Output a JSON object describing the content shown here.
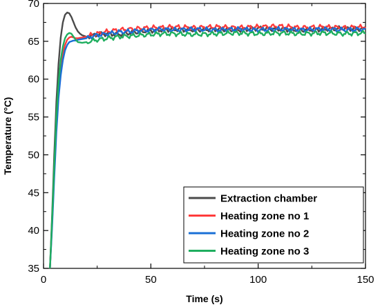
{
  "chart_data": {
    "type": "line",
    "title": "",
    "xlabel": "Time (s)",
    "ylabel": "Temperature (°C)",
    "xlim": [
      0,
      150
    ],
    "ylim": [
      35,
      70
    ],
    "x_ticks": [
      "0",
      "50",
      "100",
      "150"
    ],
    "y_ticks": [
      "35",
      "40",
      "45",
      "50",
      "55",
      "60",
      "65",
      "70"
    ],
    "grid": false,
    "legend_position": "bottom-right",
    "series": [
      {
        "name": "Extraction chamber",
        "color": "#4a4a4a",
        "x": [
          3,
          4,
          5,
          6,
          7,
          8,
          9,
          10,
          11,
          12,
          13,
          14,
          15,
          16,
          17,
          18,
          20,
          22,
          25,
          30,
          35,
          40,
          45,
          50,
          55,
          60,
          70,
          80,
          90,
          100,
          110,
          120,
          130,
          140,
          150
        ],
        "y": [
          35,
          42,
          50,
          57,
          62,
          65.5,
          67.5,
          68.5,
          68.8,
          68.7,
          68.2,
          67.5,
          66.8,
          66.3,
          66.0,
          65.8,
          65.6,
          65.7,
          65.9,
          66.0,
          65.9,
          66.1,
          66.3,
          66.4,
          66.5,
          66.6,
          66.5,
          66.6,
          66.5,
          66.7,
          66.6,
          66.5,
          66.6,
          66.7,
          66.6
        ]
      },
      {
        "name": "Heating zone no 1",
        "color": "#ff3b3b",
        "x": [
          3,
          4,
          5,
          6,
          7,
          8,
          9,
          10,
          11,
          12,
          13,
          14,
          15,
          16,
          18,
          20,
          22,
          25,
          30,
          35,
          40,
          45,
          50,
          55,
          60,
          70,
          80,
          90,
          100,
          110,
          120,
          130,
          140,
          150
        ],
        "y": [
          35,
          41,
          48,
          54,
          58.5,
          61.5,
          63.3,
          64.5,
          65.2,
          65.5,
          65.6,
          65.5,
          65.4,
          65.4,
          65.5,
          65.6,
          65.8,
          66.0,
          66.3,
          66.5,
          66.6,
          66.7,
          66.8,
          66.8,
          66.9,
          66.8,
          66.9,
          66.8,
          66.9,
          67.0,
          66.8,
          66.9,
          66.8,
          66.9
        ]
      },
      {
        "name": "Heating zone no 2",
        "color": "#1a6fd6",
        "x": [
          3,
          4,
          5,
          6,
          7,
          8,
          9,
          10,
          11,
          12,
          13,
          14,
          15,
          16,
          18,
          20,
          22,
          25,
          30,
          35,
          40,
          45,
          50,
          55,
          60,
          70,
          80,
          90,
          100,
          110,
          120,
          130,
          140,
          150
        ],
        "y": [
          35,
          40.5,
          47,
          53,
          57.5,
          60.5,
          62.5,
          63.8,
          64.5,
          64.9,
          65.0,
          65.1,
          65.1,
          65.2,
          65.3,
          65.4,
          65.6,
          65.8,
          66.0,
          66.2,
          66.3,
          66.4,
          66.5,
          66.6,
          66.5,
          66.6,
          66.5,
          66.6,
          66.5,
          66.6,
          66.5,
          66.6,
          66.5,
          66.6
        ]
      },
      {
        "name": "Heating zone no 3",
        "color": "#1fae5f",
        "x": [
          3,
          4,
          5,
          6,
          7,
          8,
          9,
          10,
          11,
          12,
          13,
          14,
          15,
          16,
          18,
          20,
          22,
          25,
          30,
          35,
          40,
          45,
          50,
          55,
          60,
          70,
          80,
          90,
          100,
          110,
          120,
          130,
          140,
          150
        ],
        "y": [
          35,
          41.5,
          48.5,
          55,
          59.5,
          62.5,
          64.3,
          65.4,
          65.9,
          66.1,
          66.0,
          65.6,
          65.2,
          64.9,
          64.8,
          64.9,
          65.0,
          65.2,
          65.4,
          65.6,
          65.7,
          65.8,
          65.9,
          66.0,
          66.0,
          65.9,
          66.0,
          66.1,
          66.0,
          66.1,
          66.0,
          66.1,
          66.0,
          66.1
        ]
      }
    ]
  }
}
